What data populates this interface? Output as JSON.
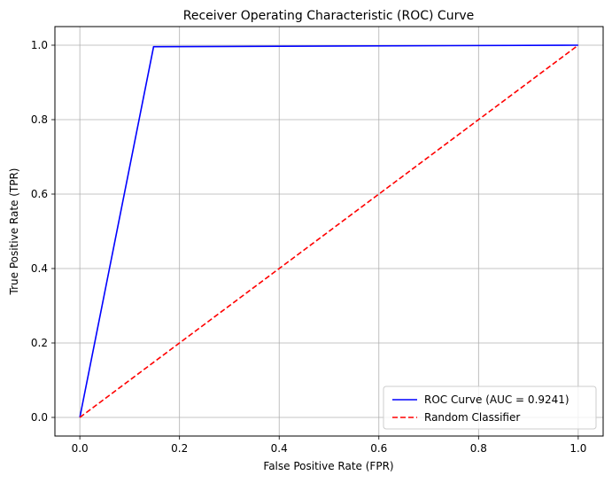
{
  "chart_data": {
    "type": "line",
    "title": "Receiver Operating Characteristic (ROC) Curve",
    "xlabel": "False Positive Rate (FPR)",
    "ylabel": "True Positive Rate (TPR)",
    "xlim": [
      -0.05,
      1.05
    ],
    "ylim": [
      -0.05,
      1.05
    ],
    "xticks": [
      "0.0",
      "0.2",
      "0.4",
      "0.6",
      "0.8",
      "1.0"
    ],
    "yticks": [
      "0.0",
      "0.2",
      "0.4",
      "0.6",
      "0.8",
      "1.0"
    ],
    "grid": true,
    "legend_position": "lower-right",
    "series": [
      {
        "name": "ROC Curve (AUC = 0.9241)",
        "color": "#0000ff",
        "style": "solid",
        "x": [
          0.0,
          0.148,
          1.0
        ],
        "y": [
          0.0,
          0.996,
          1.0
        ]
      },
      {
        "name": "Random Classifier",
        "color": "#ff0000",
        "style": "dashed",
        "x": [
          0.0,
          1.0
        ],
        "y": [
          0.0,
          1.0
        ]
      }
    ]
  }
}
